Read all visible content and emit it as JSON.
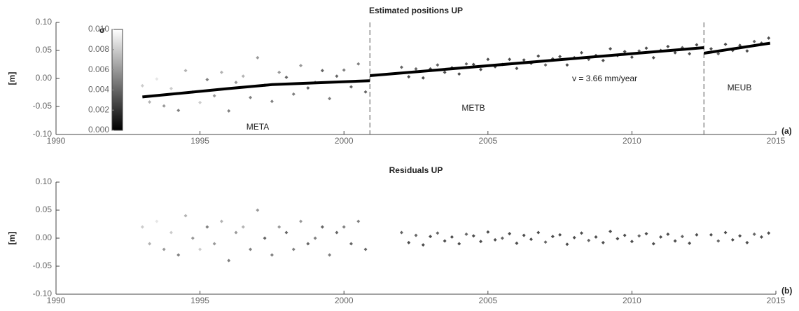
{
  "chart_data": [
    {
      "type": "scatter",
      "title": "Estimated positions UP",
      "ylabel": "[m]",
      "panel_label": "(a)",
      "xlim": [
        1990,
        2015
      ],
      "xticks": [
        1990,
        1995,
        2000,
        2005,
        2010,
        2015
      ],
      "ylim": [
        -0.1,
        0.1
      ],
      "yticks": [
        {
          "value": -0.1,
          "label": "-0.10"
        },
        {
          "value": -0.05,
          "label": "-0.05"
        },
        {
          "value": 0,
          "label": "0.00"
        },
        {
          "value": 0.05,
          "label": "0.05"
        },
        {
          "value": 0.1,
          "label": "0.10"
        }
      ],
      "x": [
        1993,
        1993.25,
        1993.5,
        1993.75,
        1994,
        1994.25,
        1994.5,
        1994.75,
        1995,
        1995.25,
        1995.5,
        1995.75,
        1996,
        1996.25,
        1996.5,
        1996.75,
        1997,
        1997.25,
        1997.5,
        1997.75,
        1998,
        1998.25,
        1998.5,
        1998.75,
        1999,
        1999.25,
        1999.5,
        1999.75,
        2000,
        2000.25,
        2000.5,
        2000.75,
        2002,
        2002.25,
        2002.5,
        2002.75,
        2003,
        2003.25,
        2003.5,
        2003.75,
        2004,
        2004.25,
        2004.5,
        2004.75,
        2005,
        2005.25,
        2005.5,
        2005.75,
        2006,
        2006.25,
        2006.5,
        2006.75,
        2007,
        2007.25,
        2007.5,
        2007.75,
        2008,
        2008.25,
        2008.5,
        2008.75,
        2009,
        2009.25,
        2009.5,
        2009.75,
        2010,
        2010.25,
        2010.5,
        2010.75,
        2011,
        2011.25,
        2011.5,
        2011.75,
        2012,
        2012.25,
        2012.75,
        2013,
        2013.25,
        2013.5,
        2013.75,
        2014,
        2014.25,
        2014.5,
        2014.75
      ],
      "values": [
        -0.013,
        -0.042,
        -0.001,
        -0.049,
        -0.018,
        -0.057,
        0.014,
        -0.024,
        -0.043,
        -0.002,
        -0.031,
        0.011,
        -0.058,
        -0.007,
        0.004,
        -0.034,
        0.037,
        -0.012,
        -0.041,
        0.011,
        0.002,
        -0.028,
        0.023,
        -0.017,
        -0.007,
        0.014,
        -0.036,
        0.004,
        0.015,
        -0.015,
        0.026,
        -0.024,
        0.02,
        0.003,
        0.017,
        0.001,
        0.017,
        0.024,
        0.011,
        0.019,
        0.008,
        0.026,
        0.025,
        0.016,
        0.034,
        0.021,
        0.025,
        0.034,
        0.018,
        0.033,
        0.027,
        0.04,
        0.024,
        0.035,
        0.039,
        0.024,
        0.037,
        0.046,
        0.034,
        0.041,
        0.032,
        0.053,
        0.041,
        0.048,
        0.038,
        0.049,
        0.054,
        0.037,
        0.05,
        0.057,
        0.046,
        0.055,
        0.044,
        0.06,
        0.053,
        0.044,
        0.061,
        0.05,
        0.059,
        0.049,
        0.066,
        0.063,
        0.072
      ],
      "sigma": [
        0.008,
        0.007,
        0.009,
        0.006,
        0.008,
        0.005,
        0.007,
        0.006,
        0.008,
        0.005,
        0.006,
        0.007,
        0.005,
        0.006,
        0.007,
        0.005,
        0.006,
        0.004,
        0.005,
        0.006,
        0.004,
        0.005,
        0.006,
        0.004,
        0.005,
        0.004,
        0.005,
        0.004,
        0.005,
        0.004,
        0.005,
        0.004,
        0.004,
        0.003,
        0.004,
        0.003,
        0.003,
        0.004,
        0.003,
        0.003,
        0.003,
        0.004,
        0.003,
        0.003,
        0.003,
        0.003,
        0.004,
        0.003,
        0.003,
        0.003,
        0.003,
        0.003,
        0.004,
        0.003,
        0.003,
        0.003,
        0.003,
        0.003,
        0.004,
        0.003,
        0.003,
        0.003,
        0.003,
        0.003,
        0.003,
        0.004,
        0.003,
        0.003,
        0.003,
        0.003,
        0.003,
        0.004,
        0.003,
        0.003,
        0.003,
        0.004,
        0.003,
        0.003,
        0.003,
        0.003,
        0.004,
        0.003,
        0.003
      ],
      "trend": {
        "x": [
          1993,
          1996,
          1997.5,
          2000.9,
          null,
          2000.9,
          2012.5,
          null,
          2012.5,
          2014.8
        ],
        "values": [
          -0.033,
          -0.018,
          -0.011,
          -0.004,
          null,
          0.005,
          0.055,
          null,
          0.045,
          0.063
        ]
      },
      "breaks": [
        2000.9,
        2012.5
      ],
      "annotations": [
        "META",
        "METB",
        "MEUB",
        "v = 3.66 mm/year"
      ],
      "colorbar": {
        "label": "σ",
        "lim": [
          0,
          0.01
        ],
        "ticks": [
          {
            "value": 0,
            "label": "0.000"
          },
          {
            "value": 0.002,
            "label": "0.002"
          },
          {
            "value": 0.004,
            "label": "0.004"
          },
          {
            "value": 0.006,
            "label": "0.006"
          },
          {
            "value": 0.008,
            "label": "0.008"
          },
          {
            "value": 0.01,
            "label": "0.010"
          }
        ]
      }
    },
    {
      "type": "scatter",
      "title": "Residuals UP",
      "ylabel": "[m]",
      "panel_label": "(b)",
      "xlim": [
        1990,
        2015
      ],
      "xticks": [
        1990,
        1995,
        2000,
        2005,
        2010,
        2015
      ],
      "ylim": [
        -0.1,
        0.1
      ],
      "yticks": [
        {
          "value": -0.1,
          "label": "-0.10"
        },
        {
          "value": -0.05,
          "label": "-0.05"
        },
        {
          "value": 0,
          "label": "0.00"
        },
        {
          "value": 0.05,
          "label": "0.05"
        },
        {
          "value": 0.1,
          "label": "0.10"
        }
      ],
      "x": [
        1993,
        1993.25,
        1993.5,
        1993.75,
        1994,
        1994.25,
        1994.5,
        1994.75,
        1995,
        1995.25,
        1995.5,
        1995.75,
        1996,
        1996.25,
        1996.5,
        1996.75,
        1997,
        1997.25,
        1997.5,
        1997.75,
        1998,
        1998.25,
        1998.5,
        1998.75,
        1999,
        1999.25,
        1999.5,
        1999.75,
        2000,
        2000.25,
        2000.5,
        2000.75,
        2002,
        2002.25,
        2002.5,
        2002.75,
        2003,
        2003.25,
        2003.5,
        2003.75,
        2004,
        2004.25,
        2004.5,
        2004.75,
        2005,
        2005.25,
        2005.5,
        2005.75,
        2006,
        2006.25,
        2006.5,
        2006.75,
        2007,
        2007.25,
        2007.5,
        2007.75,
        2008,
        2008.25,
        2008.5,
        2008.75,
        2009,
        2009.25,
        2009.5,
        2009.75,
        2010,
        2010.25,
        2010.5,
        2010.75,
        2011,
        2011.25,
        2011.5,
        2011.75,
        2012,
        2012.25,
        2012.75,
        2013,
        2013.25,
        2013.5,
        2013.75,
        2014,
        2014.25,
        2014.5,
        2014.75
      ],
      "values": [
        0.02,
        -0.01,
        0.03,
        -0.02,
        0.01,
        -0.03,
        0.04,
        0,
        -0.02,
        0.02,
        -0.01,
        0.03,
        -0.04,
        0.01,
        0.02,
        -0.02,
        0.05,
        0,
        -0.03,
        0.02,
        0.01,
        -0.02,
        0.03,
        -0.01,
        0,
        0.02,
        -0.03,
        0.01,
        0.02,
        -0.01,
        0.03,
        -0.02,
        0.01,
        -0.008,
        0.005,
        -0.012,
        0.003,
        0.009,
        -0.005,
        0.002,
        -0.01,
        0.007,
        0.004,
        -0.006,
        0.011,
        -0.003,
        0,
        0.008,
        -0.009,
        0.005,
        -0.002,
        0.01,
        -0.007,
        0.003,
        0.006,
        -0.011,
        0.001,
        0.009,
        -0.004,
        0.002,
        -0.008,
        0.012,
        -0.001,
        0.005,
        -0.006,
        0.004,
        0.008,
        -0.01,
        0.002,
        0.007,
        -0.005,
        0.003,
        -0.009,
        0.006,
        0.006,
        -0.005,
        0.01,
        -0.003,
        0.004,
        -0.008,
        0.007,
        0.002,
        0.009
      ],
      "sigma": [
        0.008,
        0.007,
        0.009,
        0.006,
        0.008,
        0.005,
        0.007,
        0.006,
        0.008,
        0.005,
        0.006,
        0.007,
        0.005,
        0.006,
        0.007,
        0.005,
        0.006,
        0.004,
        0.005,
        0.006,
        0.004,
        0.005,
        0.006,
        0.004,
        0.005,
        0.004,
        0.005,
        0.004,
        0.005,
        0.004,
        0.005,
        0.004,
        0.004,
        0.003,
        0.004,
        0.003,
        0.003,
        0.004,
        0.003,
        0.003,
        0.003,
        0.004,
        0.003,
        0.003,
        0.003,
        0.003,
        0.004,
        0.003,
        0.003,
        0.003,
        0.003,
        0.003,
        0.004,
        0.003,
        0.003,
        0.003,
        0.003,
        0.003,
        0.004,
        0.003,
        0.003,
        0.003,
        0.003,
        0.003,
        0.003,
        0.004,
        0.003,
        0.003,
        0.003,
        0.003,
        0.003,
        0.004,
        0.003,
        0.003,
        0.003,
        0.004,
        0.003,
        0.003,
        0.003,
        0.003,
        0.004,
        0.003,
        0.003
      ]
    }
  ]
}
